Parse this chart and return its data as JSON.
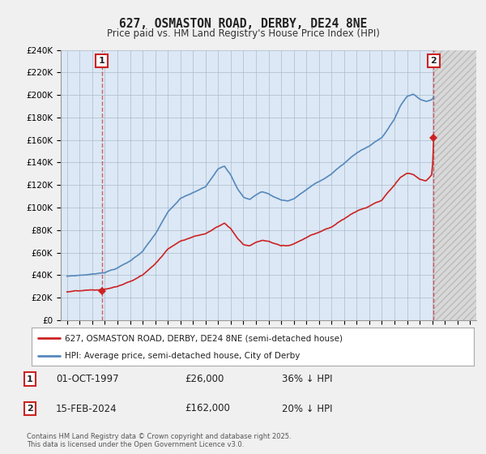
{
  "title": "627, OSMASTON ROAD, DERBY, DE24 8NE",
  "subtitle": "Price paid vs. HM Land Registry's House Price Index (HPI)",
  "legend_line1": "627, OSMASTON ROAD, DERBY, DE24 8NE (semi-detached house)",
  "legend_line2": "HPI: Average price, semi-detached house, City of Derby",
  "footnote": "Contains HM Land Registry data © Crown copyright and database right 2025.\nThis data is licensed under the Open Government Licence v3.0.",
  "transaction1": {
    "label": "1",
    "date": "01-OCT-1997",
    "price": "£26,000",
    "hpi_note": "36% ↓ HPI"
  },
  "transaction2": {
    "label": "2",
    "date": "15-FEB-2024",
    "price": "£162,000",
    "hpi_note": "20% ↓ HPI"
  },
  "t1_x": 1997.75,
  "t1_y": 26000,
  "t2_x": 2024.12,
  "t2_y": 162000,
  "background_color": "#f0f0f0",
  "plot_background": "#dce8f5",
  "plot_background_future": "#e8e8e8",
  "grid_color": "#aabbcc",
  "hpi_line_color": "#5588bb",
  "price_line_color": "#cc2222",
  "marker_color": "#cc2222",
  "label_box_color": "#cc2222",
  "ylim": [
    0,
    240000
  ],
  "yticks": [
    0,
    20000,
    40000,
    60000,
    80000,
    100000,
    120000,
    140000,
    160000,
    180000,
    200000,
    220000,
    240000
  ],
  "xlim": [
    1994.5,
    2027.5
  ],
  "xticks": [
    1995,
    1996,
    1997,
    1998,
    1999,
    2000,
    2001,
    2002,
    2003,
    2004,
    2005,
    2006,
    2007,
    2008,
    2009,
    2010,
    2011,
    2012,
    2013,
    2014,
    2015,
    2016,
    2017,
    2018,
    2019,
    2020,
    2021,
    2022,
    2023,
    2024,
    2025,
    2026,
    2027
  ]
}
